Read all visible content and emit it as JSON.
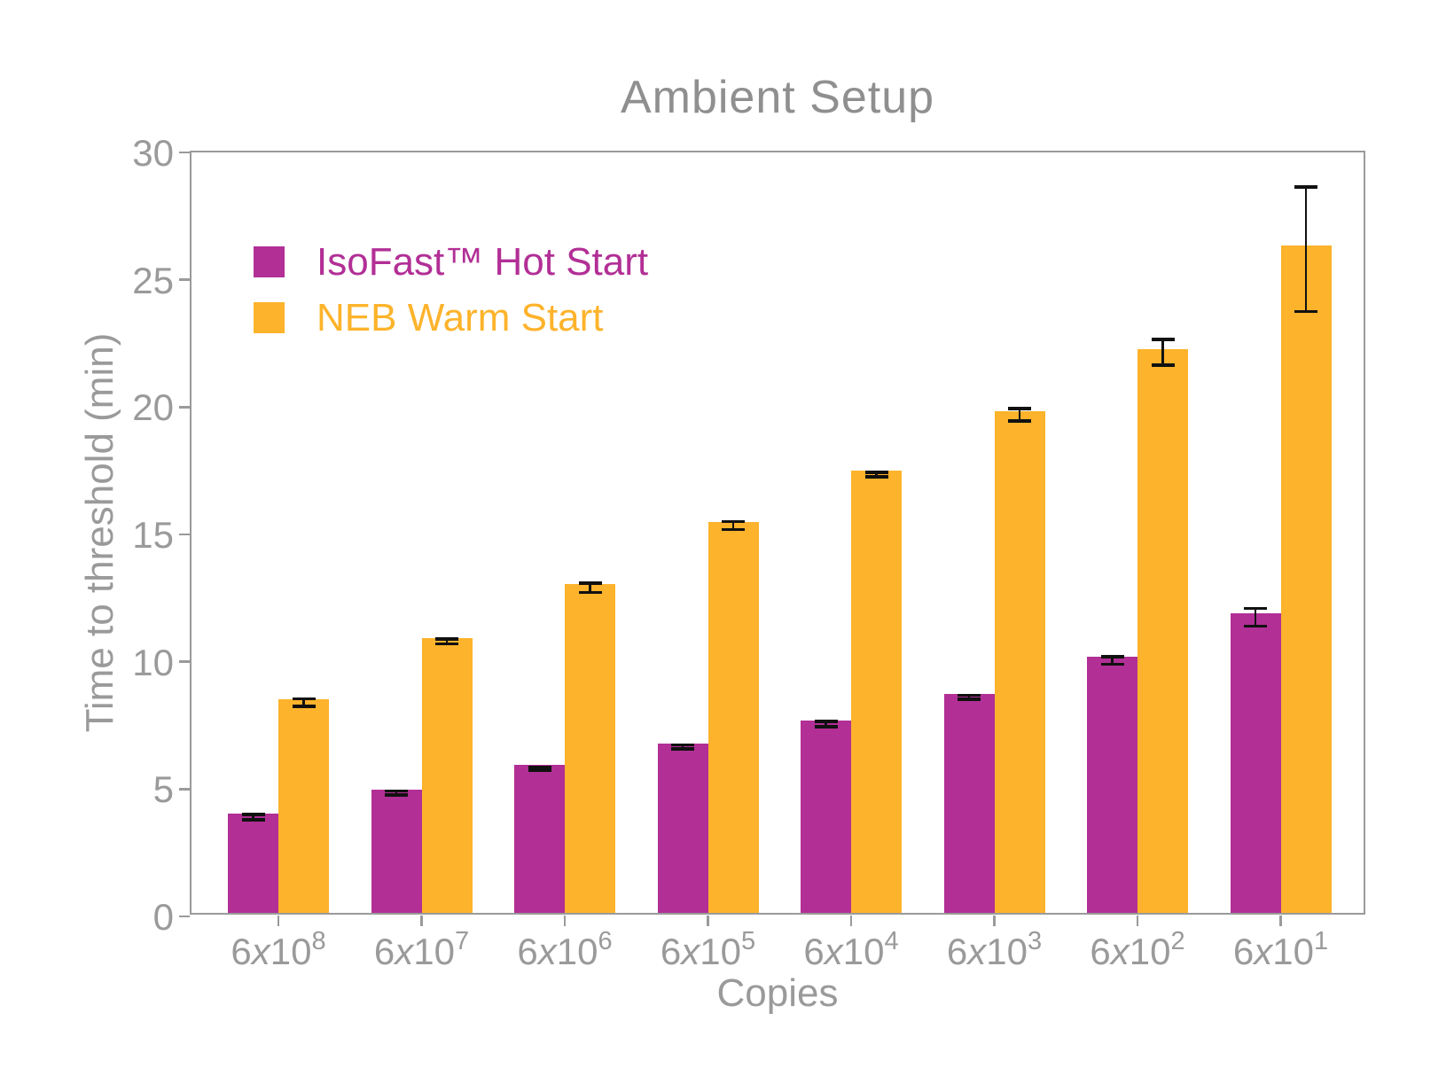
{
  "title": "Ambient Setup",
  "axes": {
    "x_label": "Copies",
    "y_label": "Time to threshold (min)"
  },
  "colors": {
    "isofast_magenta": "#b22f96",
    "neb_orange": "#fdb32b",
    "chart_text_gray": "#9a9a9a",
    "error_bar_black": "#111111"
  },
  "chart_data": {
    "type": "bar",
    "title": "Ambient Setup",
    "xlabel": "Copies",
    "ylabel": "Time to threshold (min)",
    "ylim": [
      0,
      30
    ],
    "yticks": [
      0,
      5,
      10,
      15,
      20,
      25,
      30
    ],
    "grid": false,
    "legend_position": "upper-left",
    "categories": [
      {
        "coeff": "6",
        "base": "10",
        "exp": "8",
        "text": "6x10^8"
      },
      {
        "coeff": "6",
        "base": "10",
        "exp": "7",
        "text": "6x10^7"
      },
      {
        "coeff": "6",
        "base": "10",
        "exp": "6",
        "text": "6x10^6"
      },
      {
        "coeff": "6",
        "base": "10",
        "exp": "5",
        "text": "6x10^5"
      },
      {
        "coeff": "6",
        "base": "10",
        "exp": "4",
        "text": "6x10^4"
      },
      {
        "coeff": "6",
        "base": "10",
        "exp": "3",
        "text": "6x10^3"
      },
      {
        "coeff": "6",
        "base": "10",
        "exp": "2",
        "text": "6x10^2"
      },
      {
        "coeff": "6",
        "base": "10",
        "exp": "1",
        "text": "6x10^1"
      }
    ],
    "series": [
      {
        "name": "IsoFast™ Hot Start",
        "color": "#b22f96",
        "values": [
          3.9,
          4.85,
          5.8,
          6.65,
          7.55,
          8.6,
          10.05,
          11.75
        ],
        "errors": [
          0.1,
          0.08,
          0.06,
          0.08,
          0.1,
          0.08,
          0.15,
          0.35
        ]
      },
      {
        "name": "NEB Warm Start",
        "color": "#fdb32b",
        "values": [
          8.4,
          10.8,
          12.9,
          15.35,
          17.35,
          19.7,
          22.15,
          26.2
        ],
        "errors": [
          0.15,
          0.1,
          0.18,
          0.15,
          0.08,
          0.25,
          0.5,
          2.45
        ]
      }
    ]
  }
}
